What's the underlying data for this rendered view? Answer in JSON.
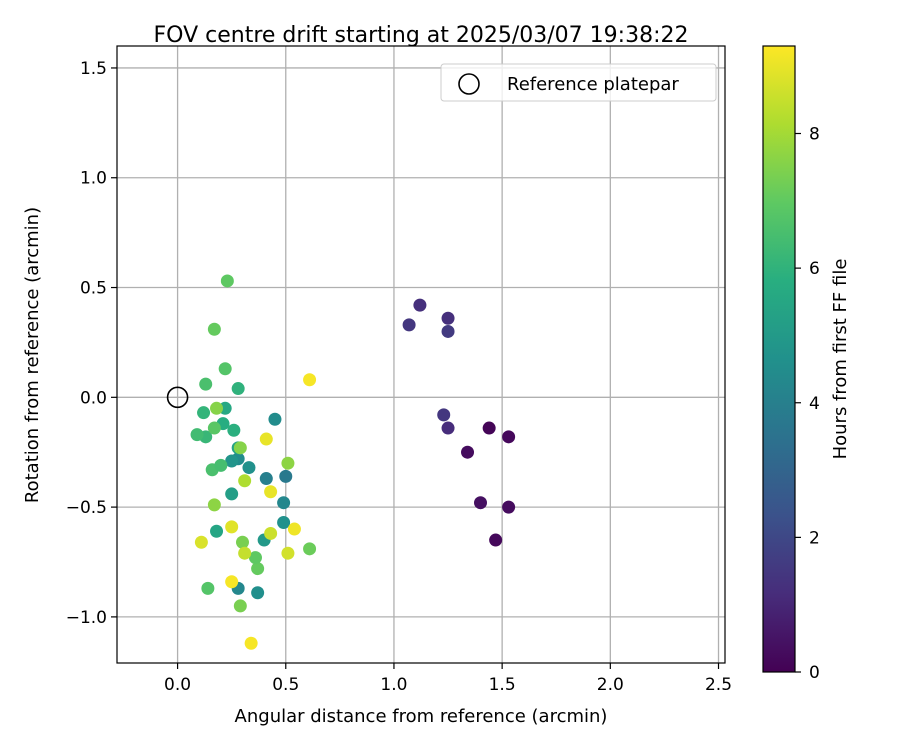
{
  "chart_data": {
    "type": "scatter",
    "title": "FOV centre drift starting at 2025/03/07 19:38:22",
    "xlabel": "Angular distance from reference (arcmin)",
    "ylabel": "Rotation from reference (arcmin)",
    "xlim": [
      -0.28,
      2.53
    ],
    "ylim": [
      -1.21,
      1.6
    ],
    "xticks": [
      0.0,
      0.5,
      1.0,
      1.5,
      2.0,
      2.5
    ],
    "xtick_labels": [
      "0.0",
      "0.5",
      "1.0",
      "1.5",
      "2.0",
      "2.5"
    ],
    "yticks": [
      -1.0,
      -0.5,
      0.0,
      0.5,
      1.0,
      1.5
    ],
    "ytick_labels": [
      "−1.0",
      "−0.5",
      "0.0",
      "0.5",
      "1.0",
      "1.5"
    ],
    "grid": true,
    "legend": {
      "position": "top-right",
      "label": "Reference platepar",
      "marker": "open-circle"
    },
    "reference_point": {
      "x": 0.0,
      "y": 0.0
    },
    "colorbar": {
      "label": "Hours from first FF file",
      "range": [
        0,
        9.3
      ],
      "ticks": [
        0,
        2,
        4,
        6,
        8
      ],
      "tick_labels": [
        "0",
        "2",
        "4",
        "6",
        "8"
      ],
      "colormap": "viridis"
    },
    "points": [
      {
        "x": 1.44,
        "y": -0.14,
        "h": 0.1
      },
      {
        "x": 1.53,
        "y": -0.18,
        "h": 0.2
      },
      {
        "x": 1.34,
        "y": -0.25,
        "h": 0.3
      },
      {
        "x": 1.4,
        "y": -0.48,
        "h": 0.4
      },
      {
        "x": 1.53,
        "y": -0.5,
        "h": 0.3
      },
      {
        "x": 1.47,
        "y": -0.65,
        "h": 0.2
      },
      {
        "x": 1.25,
        "y": -0.14,
        "h": 1.2
      },
      {
        "x": 1.23,
        "y": -0.08,
        "h": 1.5
      },
      {
        "x": 1.07,
        "y": 0.33,
        "h": 1.5
      },
      {
        "x": 1.12,
        "y": 0.42,
        "h": 1.3
      },
      {
        "x": 1.25,
        "y": 0.36,
        "h": 1.3
      },
      {
        "x": 1.25,
        "y": 0.3,
        "h": 1.6
      },
      {
        "x": 0.45,
        "y": -0.1,
        "h": 4.5
      },
      {
        "x": 0.41,
        "y": -0.37,
        "h": 4.0
      },
      {
        "x": 0.5,
        "y": -0.36,
        "h": 3.8
      },
      {
        "x": 0.49,
        "y": -0.48,
        "h": 4.3
      },
      {
        "x": 0.49,
        "y": -0.57,
        "h": 4.7
      },
      {
        "x": 0.4,
        "y": -0.65,
        "h": 5.0
      },
      {
        "x": 0.33,
        "y": -0.32,
        "h": 4.7
      },
      {
        "x": 0.28,
        "y": -0.28,
        "h": 4.5
      },
      {
        "x": 0.25,
        "y": -0.29,
        "h": 4.8
      },
      {
        "x": 0.28,
        "y": -0.87,
        "h": 4.3
      },
      {
        "x": 0.37,
        "y": -0.89,
        "h": 4.6
      },
      {
        "x": 0.25,
        "y": -0.44,
        "h": 5.2
      },
      {
        "x": 0.18,
        "y": -0.61,
        "h": 5.5
      },
      {
        "x": 0.28,
        "y": -0.23,
        "h": 5.4
      },
      {
        "x": 0.22,
        "y": -0.05,
        "h": 5.6
      },
      {
        "x": 0.21,
        "y": -0.12,
        "h": 5.8
      },
      {
        "x": 0.26,
        "y": -0.15,
        "h": 5.9
      },
      {
        "x": 0.28,
        "y": 0.04,
        "h": 6.0
      },
      {
        "x": 0.12,
        "y": -0.07,
        "h": 6.1
      },
      {
        "x": 0.13,
        "y": -0.18,
        "h": 6.2
      },
      {
        "x": 0.09,
        "y": -0.17,
        "h": 6.4
      },
      {
        "x": 0.16,
        "y": -0.33,
        "h": 6.6
      },
      {
        "x": 0.2,
        "y": -0.31,
        "h": 6.5
      },
      {
        "x": 0.13,
        "y": 0.06,
        "h": 6.6
      },
      {
        "x": 0.22,
        "y": 0.13,
        "h": 6.8
      },
      {
        "x": 0.17,
        "y": -0.14,
        "h": 6.9
      },
      {
        "x": 0.14,
        "y": -0.87,
        "h": 6.8
      },
      {
        "x": 0.23,
        "y": 0.53,
        "h": 7.0
      },
      {
        "x": 0.17,
        "y": 0.31,
        "h": 7.1
      },
      {
        "x": 0.37,
        "y": -0.78,
        "h": 7.1
      },
      {
        "x": 0.36,
        "y": -0.73,
        "h": 7.0
      },
      {
        "x": 0.61,
        "y": -0.69,
        "h": 7.2
      },
      {
        "x": 0.3,
        "y": -0.66,
        "h": 7.4
      },
      {
        "x": 0.29,
        "y": -0.95,
        "h": 7.4
      },
      {
        "x": 0.18,
        "y": -0.05,
        "h": 7.6
      },
      {
        "x": 0.29,
        "y": -0.23,
        "h": 7.6
      },
      {
        "x": 0.17,
        "y": -0.49,
        "h": 7.7
      },
      {
        "x": 0.51,
        "y": -0.3,
        "h": 7.7
      },
      {
        "x": 0.31,
        "y": -0.38,
        "h": 8.2
      },
      {
        "x": 0.43,
        "y": -0.62,
        "h": 8.6
      },
      {
        "x": 0.31,
        "y": -0.71,
        "h": 8.5
      },
      {
        "x": 0.51,
        "y": -0.71,
        "h": 8.7
      },
      {
        "x": 0.11,
        "y": -0.66,
        "h": 8.8
      },
      {
        "x": 0.25,
        "y": -0.59,
        "h": 8.9
      },
      {
        "x": 0.41,
        "y": -0.19,
        "h": 9.0
      },
      {
        "x": 0.43,
        "y": -0.43,
        "h": 9.0
      },
      {
        "x": 0.54,
        "y": -0.6,
        "h": 9.1
      },
      {
        "x": 0.25,
        "y": -0.84,
        "h": 9.2
      },
      {
        "x": 0.61,
        "y": 0.08,
        "h": 9.2
      },
      {
        "x": 0.34,
        "y": -1.12,
        "h": 9.2
      }
    ]
  }
}
